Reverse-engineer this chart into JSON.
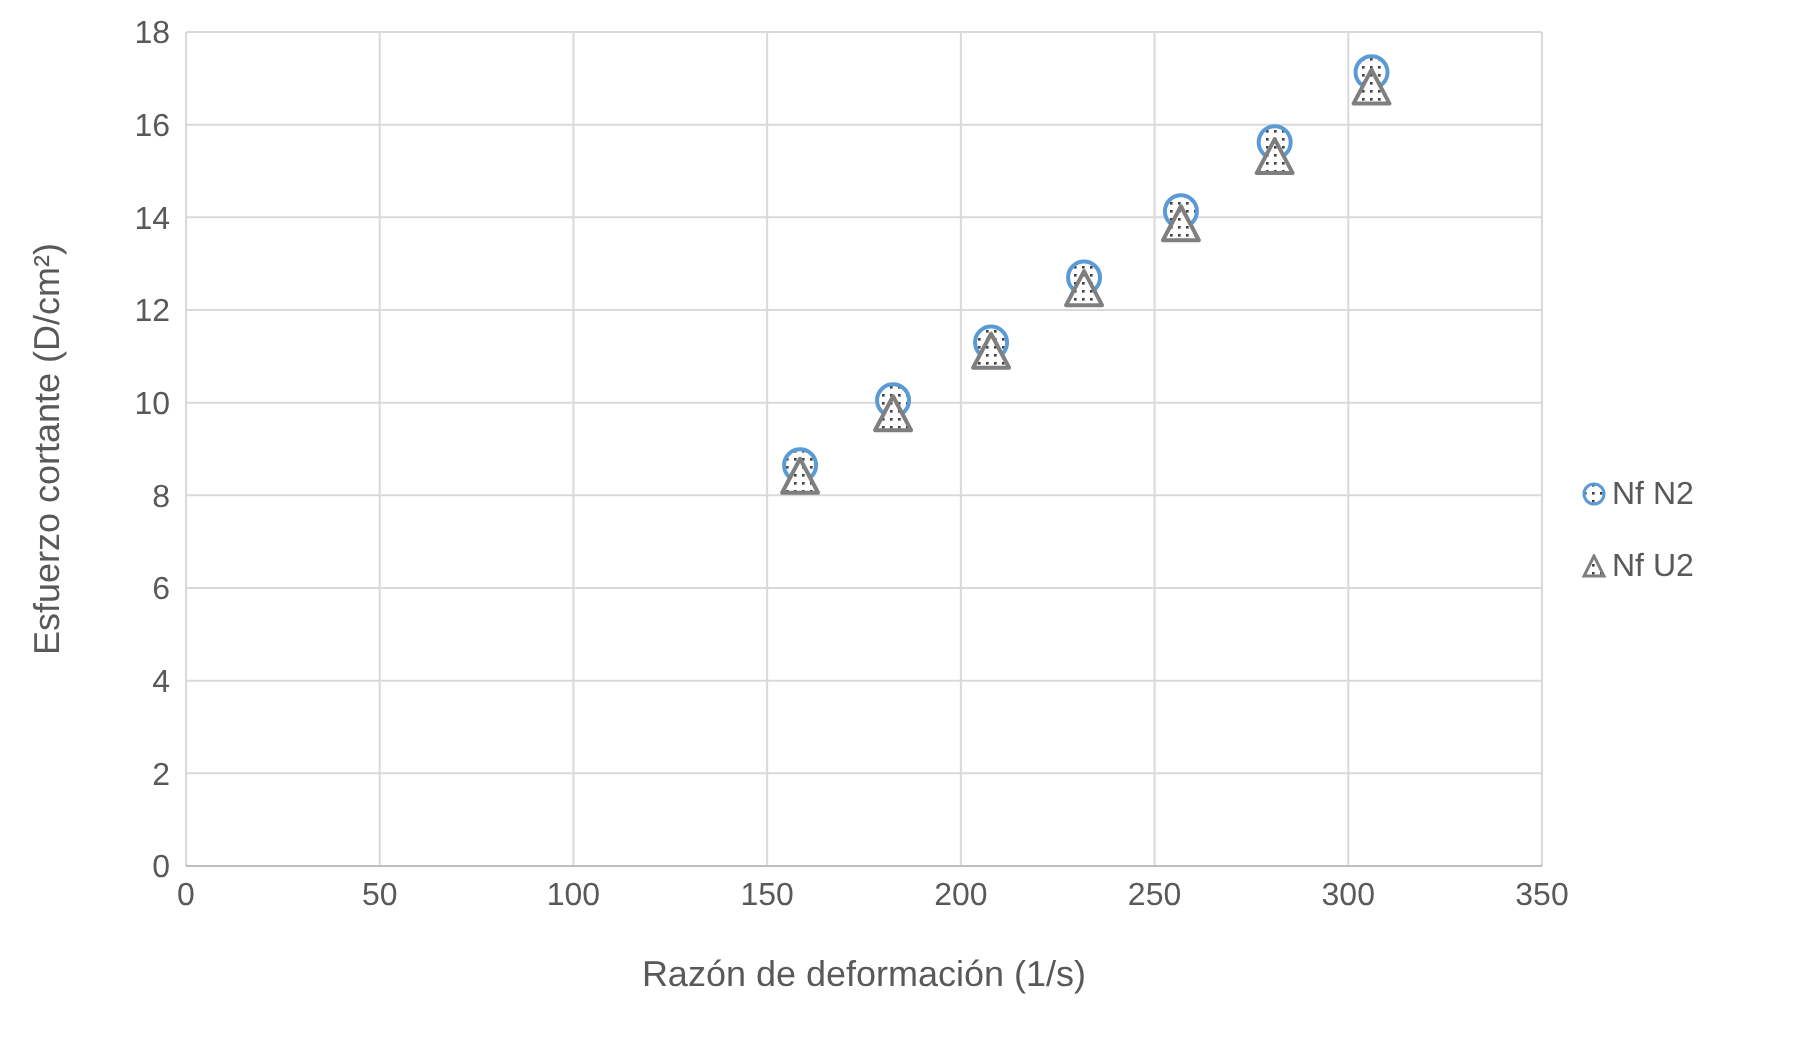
{
  "chart_data": {
    "type": "scatter",
    "xlabel": "Razón de deformación (1/s)",
    "ylabel": "Esfuerzo cortante (D/cm²)",
    "xlim": [
      0,
      350
    ],
    "xticks": [
      0,
      50,
      100,
      150,
      200,
      250,
      300,
      350
    ],
    "ylim": [
      0,
      18
    ],
    "yticks": [
      0,
      2,
      4,
      6,
      8,
      10,
      12,
      14,
      16,
      18
    ],
    "grid": true,
    "legend": "right",
    "x": [
      158.5,
      182.5,
      207.8,
      231.8,
      256.8,
      281,
      306
    ],
    "series": [
      {
        "name": "Nf N2",
        "color": "#5b9bd5",
        "marker": "circle",
        "values": [
          8.65,
          10.05,
          11.3,
          12.7,
          14.13,
          15.62,
          17.13
        ]
      },
      {
        "name": "Nf U2",
        "color": "#7f7f7f",
        "marker": "triangle",
        "values": [
          8.4,
          9.75,
          11.1,
          12.45,
          13.85,
          15.3,
          16.8
        ]
      }
    ]
  }
}
